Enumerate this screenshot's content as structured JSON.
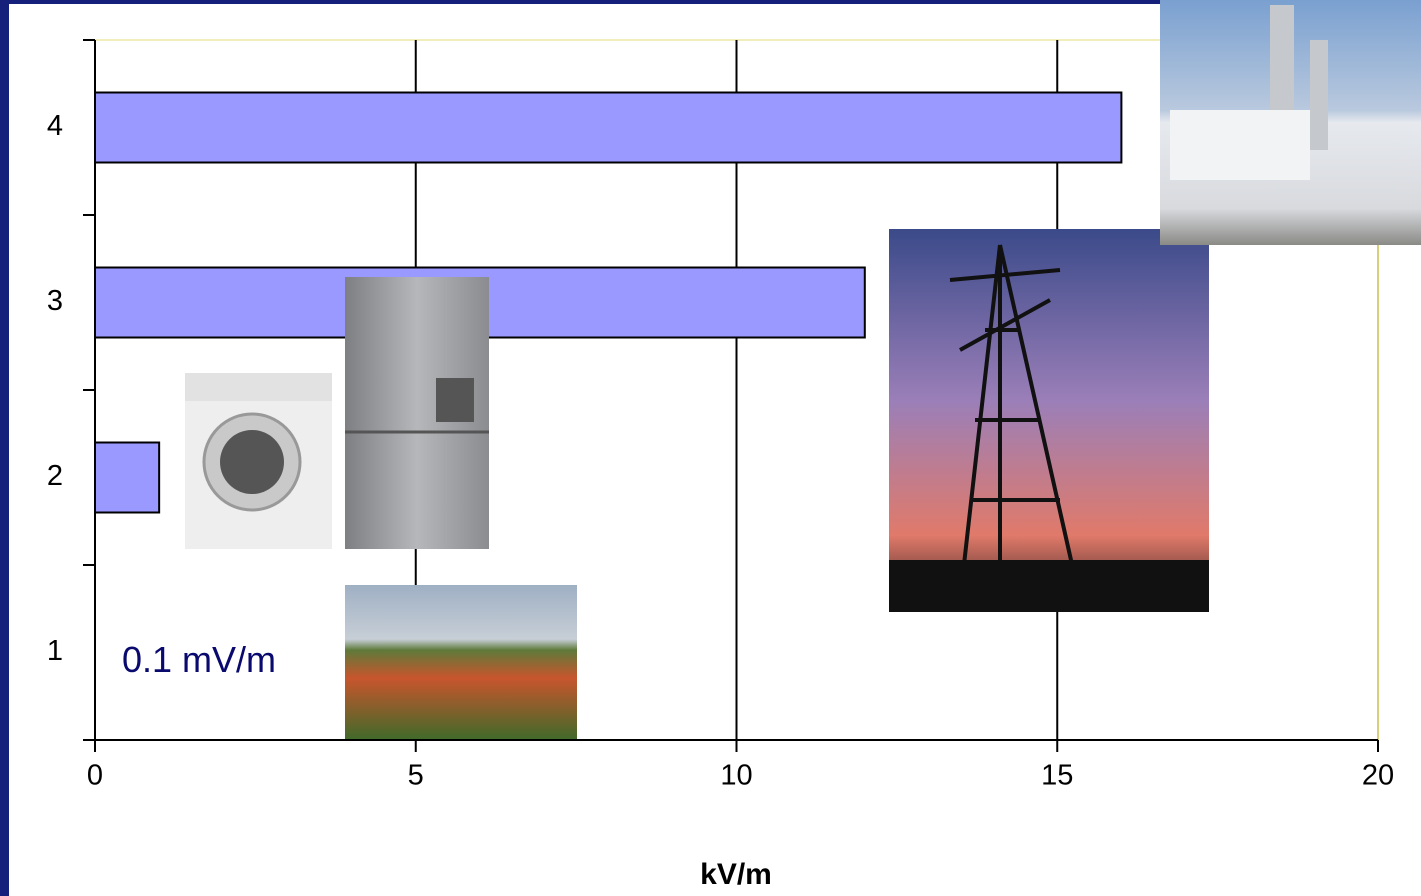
{
  "chart_data": {
    "type": "barh",
    "categories": [
      "1",
      "2",
      "3",
      "4"
    ],
    "values": [
      0.0001,
      1,
      12,
      16
    ],
    "value_labels": [
      "0.1 mV/m",
      null,
      null,
      null
    ],
    "color": "#9999ff",
    "xlabel": "kV/m",
    "xlim": [
      0,
      20
    ],
    "xticks": [
      0,
      5,
      10,
      15,
      20
    ],
    "grid": true
  }
}
